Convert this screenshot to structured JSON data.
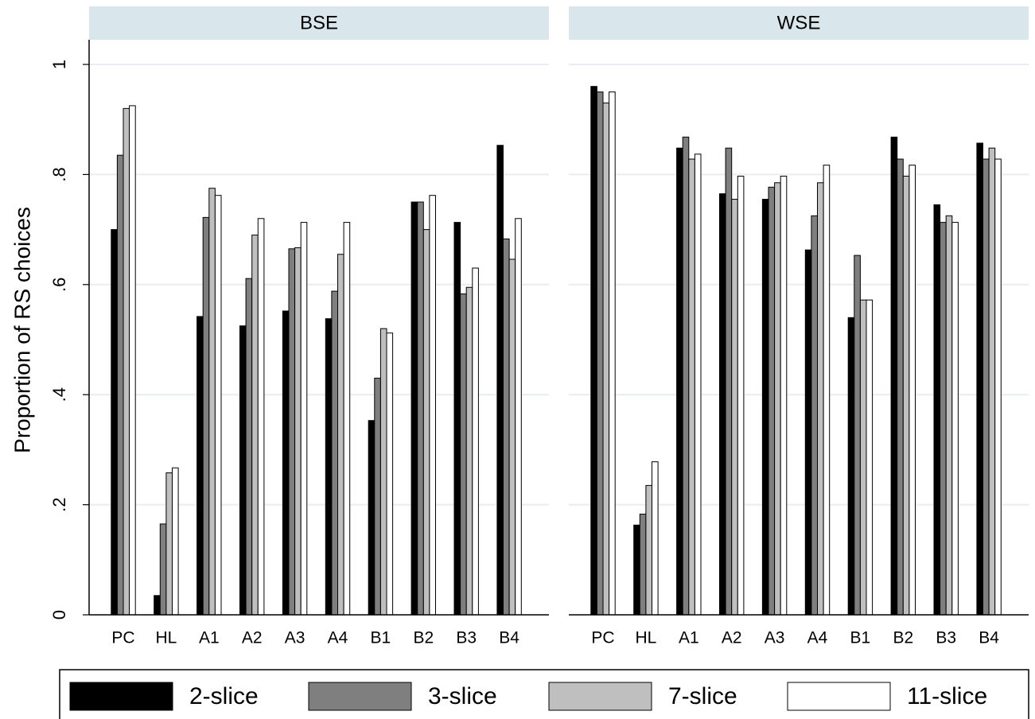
{
  "chart_data": [
    {
      "type": "bar",
      "title": "BSE",
      "y_label": "Proportion of RS choices",
      "categories": [
        "PC",
        "HL",
        "A1",
        "A2",
        "A3",
        "A4",
        "B1",
        "B2",
        "B3",
        "B4"
      ],
      "ylim": [
        0,
        1
      ],
      "yticks": [
        0,
        {
          "value": 0.2,
          "label": ".2"
        },
        {
          "value": 0.4,
          "label": ".4"
        },
        {
          "value": 0.6,
          "label": ".6"
        },
        {
          "value": 0.8,
          "label": ".8"
        },
        1
      ],
      "grid": true,
      "series": [
        {
          "name": "2-slice",
          "color": "#000000",
          "values": [
            0.7,
            0.035,
            0.542,
            0.525,
            0.552,
            0.538,
            0.353,
            0.75,
            0.713,
            0.853
          ]
        },
        {
          "name": "3-slice",
          "color": "#7f7f7f",
          "values": [
            0.835,
            0.165,
            0.722,
            0.611,
            0.665,
            0.588,
            0.43,
            0.75,
            0.583,
            0.683
          ]
        },
        {
          "name": "7-slice",
          "color": "#bfbfbf",
          "values": [
            0.92,
            0.258,
            0.775,
            0.69,
            0.667,
            0.655,
            0.52,
            0.7,
            0.595,
            0.646
          ]
        },
        {
          "name": "11-slice",
          "color": "#ffffff",
          "values": [
            0.925,
            0.267,
            0.762,
            0.72,
            0.713,
            0.713,
            0.512,
            0.762,
            0.63,
            0.72
          ]
        }
      ]
    },
    {
      "type": "bar",
      "title": "WSE",
      "categories": [
        "PC",
        "HL",
        "A1",
        "A2",
        "A3",
        "A4",
        "B1",
        "B2",
        "B3",
        "B4"
      ],
      "series": [
        {
          "color": "#000000",
          "values": [
            0.96,
            0.163,
            0.848,
            0.765,
            0.755,
            0.663,
            0.54,
            0.868,
            0.745,
            0.857
          ]
        },
        {
          "color": "#7f7f7f",
          "values": [
            0.95,
            0.183,
            0.868,
            0.848,
            0.777,
            0.725,
            0.653,
            0.828,
            0.713,
            0.828
          ]
        },
        {
          "color": "#bfbfbf",
          "values": [
            0.93,
            0.235,
            0.828,
            0.755,
            0.785,
            0.785,
            0.572,
            0.797,
            0.725,
            0.848
          ]
        },
        {
          "color": "#ffffff",
          "values": [
            0.95,
            0.278,
            0.837,
            0.797,
            0.797,
            0.817,
            0.572,
            0.817,
            0.713,
            0.828
          ]
        }
      ]
    }
  ]
}
